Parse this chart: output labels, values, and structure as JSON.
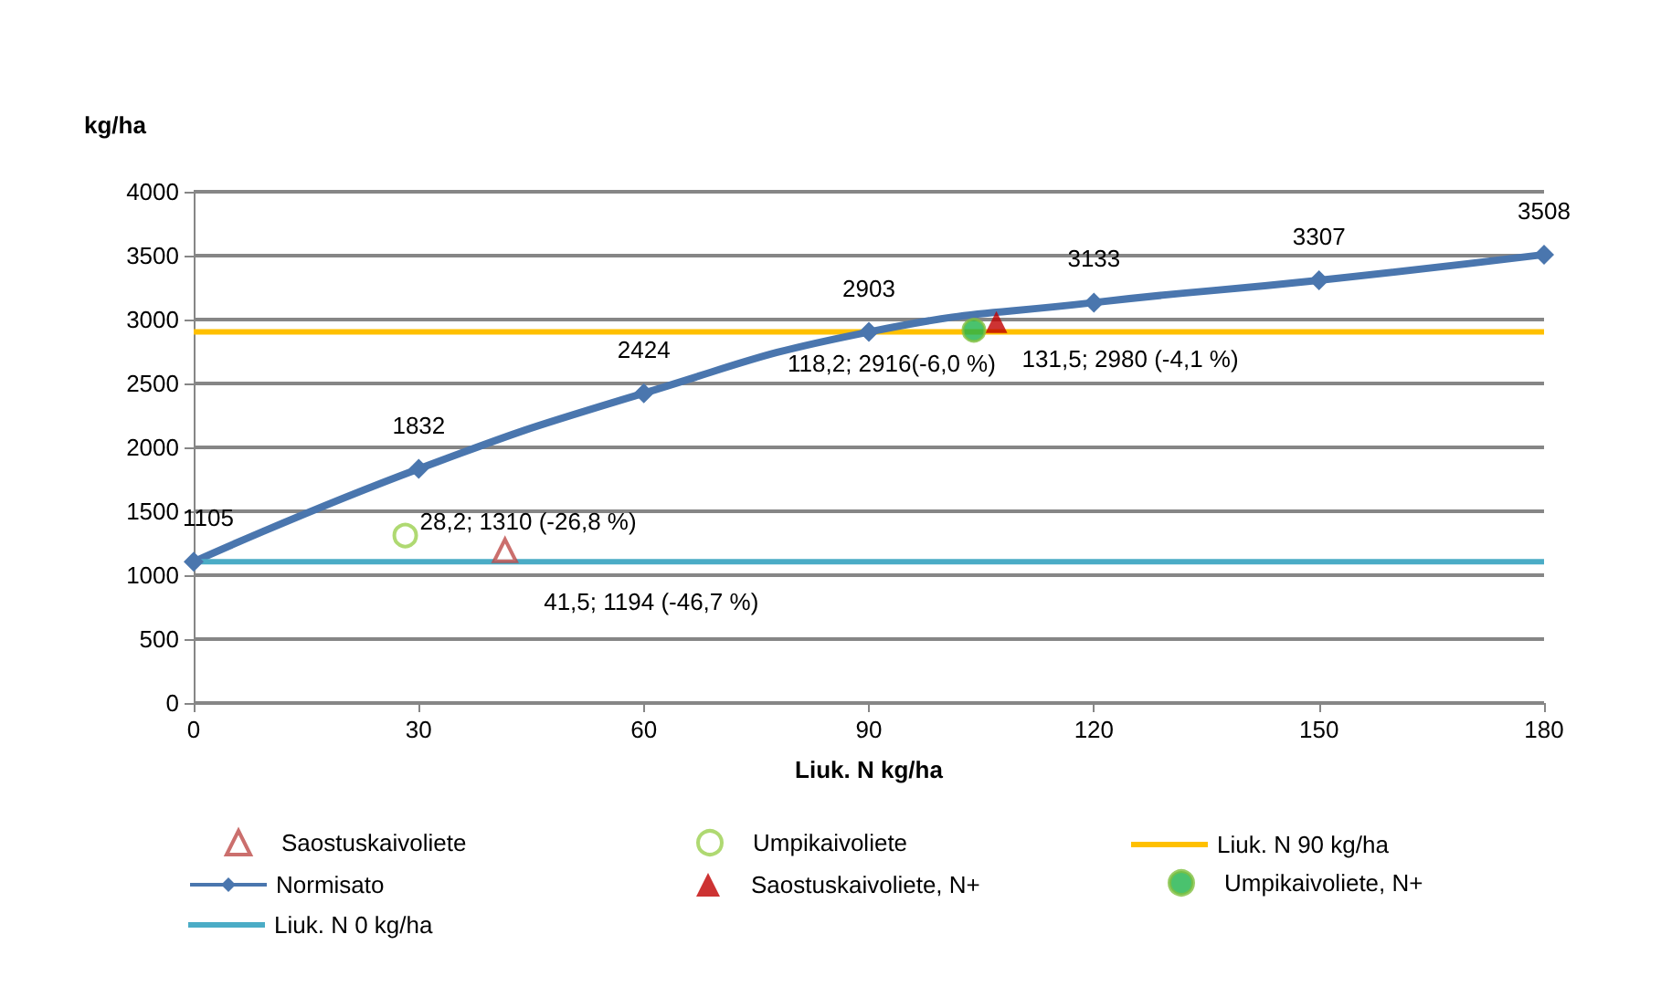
{
  "chart_data": {
    "type": "line",
    "xlabel": "Liuk. N kg/ha",
    "ylabel": "kg/ha",
    "xlim": [
      0,
      180
    ],
    "xticks": [
      0,
      30,
      60,
      90,
      120,
      150,
      180
    ],
    "ylim": [
      0,
      4000
    ],
    "yticks": [
      0,
      500,
      1000,
      1500,
      2000,
      2500,
      3000,
      3500,
      4000
    ],
    "grid": "y",
    "legend": "bottom",
    "series": [
      {
        "name": "Saostuskaivoliete",
        "type": "scatter",
        "marker": "triangle",
        "color": "#be4b48",
        "x": [
          41.5
        ],
        "values": [
          1194
        ]
      },
      {
        "name": "Umpikaivoliete",
        "type": "scatter",
        "marker": "circle",
        "color": "#9bcf4f",
        "x": [
          28.2
        ],
        "values": [
          1310
        ]
      },
      {
        "name": "Liuk. N 90 kg/ha",
        "marker": "none",
        "color": "#ffc000",
        "x": [
          0,
          180
        ],
        "values": [
          2903,
          2903
        ]
      },
      {
        "name": "Normisato",
        "marker": "diamond",
        "color": "#4a76ae",
        "data_labels": true,
        "x": [
          0,
          30,
          60,
          90,
          120,
          150,
          180
        ],
        "values": [
          1105,
          1832,
          2424,
          2903,
          3133,
          3307,
          3508
        ]
      },
      {
        "name": "Saostuskaivoliete, N+",
        "type": "scatter",
        "marker": "triangle",
        "color": "#c00000",
        "x": [
          107
        ],
        "values": [
          2980
        ]
      },
      {
        "name": "Umpikaivoliete, N+",
        "type": "scatter",
        "marker": "circle",
        "color": "#1db34a",
        "x": [
          104
        ],
        "values": [
          2916
        ]
      },
      {
        "name": "Liuk. N 0 kg/ha",
        "marker": "none",
        "color": "#4bacc6",
        "x": [
          0,
          180
        ],
        "values": [
          1105,
          1105
        ]
      }
    ],
    "annotations": [
      {
        "text": "41,5; 1194 (-46,7 %)",
        "x": 41.5,
        "y": 1194
      },
      {
        "text": "28,2; 1310 (-26,8 %)",
        "x": 28.2,
        "y": 1310
      },
      {
        "text": "118,2; 2916(-6,0 %)",
        "x": 104,
        "y": 2916
      },
      {
        "text": "131,5; 2980 (-4,1 %)",
        "x": 107,
        "y": 2980
      }
    ]
  }
}
